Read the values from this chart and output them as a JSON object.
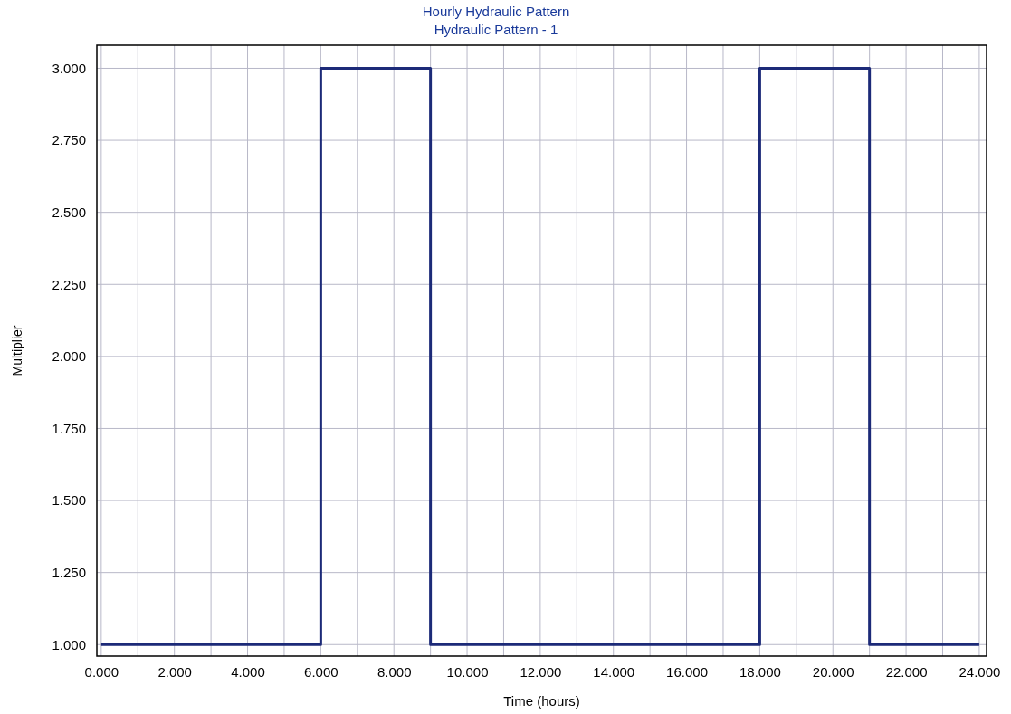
{
  "chart_data": {
    "type": "step",
    "title": "Hourly Hydraulic Pattern",
    "subtitle": "Hydraulic Pattern - 1",
    "xlabel": "Time (hours)",
    "ylabel": "Multiplier",
    "x": [
      0,
      6,
      9,
      18,
      21,
      24
    ],
    "series": [
      {
        "color": "#1c2a78",
        "values": [
          1,
          3,
          1,
          3,
          1,
          1
        ]
      }
    ],
    "xlim": [
      -0.12,
      24.2
    ],
    "ylim": [
      0.96,
      3.08
    ],
    "xticks": [
      {
        "value": 0,
        "label": "0.000"
      },
      {
        "value": 1,
        "label": null
      },
      {
        "value": 2,
        "label": "2.000"
      },
      {
        "value": 3,
        "label": null
      },
      {
        "value": 4,
        "label": "4.000"
      },
      {
        "value": 5,
        "label": null
      },
      {
        "value": 6,
        "label": "6.000"
      },
      {
        "value": 7,
        "label": null
      },
      {
        "value": 8,
        "label": "8.000"
      },
      {
        "value": 9,
        "label": null
      },
      {
        "value": 10,
        "label": "10.000"
      },
      {
        "value": 11,
        "label": null
      },
      {
        "value": 12,
        "label": "12.000"
      },
      {
        "value": 13,
        "label": null
      },
      {
        "value": 14,
        "label": "14.000"
      },
      {
        "value": 15,
        "label": null
      },
      {
        "value": 16,
        "label": "16.000"
      },
      {
        "value": 17,
        "label": null
      },
      {
        "value": 18,
        "label": "18.000"
      },
      {
        "value": 19,
        "label": null
      },
      {
        "value": 20,
        "label": "20.000"
      },
      {
        "value": 21,
        "label": null
      },
      {
        "value": 22,
        "label": "22.000"
      },
      {
        "value": 23,
        "label": null
      },
      {
        "value": 24,
        "label": "24.000"
      }
    ],
    "yticks": [
      {
        "value": 1,
        "label": "1.000"
      },
      {
        "value": 1.25,
        "label": "1.250"
      },
      {
        "value": 1.5,
        "label": "1.500"
      },
      {
        "value": 1.75,
        "label": "1.750"
      },
      {
        "value": 2,
        "label": "2.000"
      },
      {
        "value": 2.25,
        "label": "2.250"
      },
      {
        "value": 2.5,
        "label": "2.500"
      },
      {
        "value": 2.75,
        "label": "2.750"
      },
      {
        "value": 3,
        "label": "3.000"
      }
    ],
    "grid": true,
    "line_style": "solid",
    "marker": "none"
  }
}
